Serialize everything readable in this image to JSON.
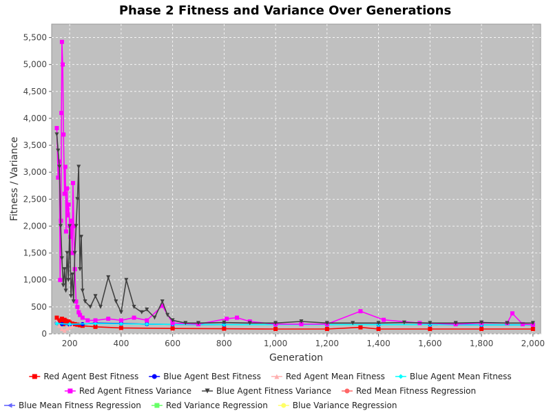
{
  "chart_data": {
    "type": "line",
    "title": "Phase 2 Fitness and Variance Over Generations",
    "xlabel": "Generation",
    "ylabel": "Fitness / Variance",
    "xlim": [
      130,
      2030
    ],
    "ylim": [
      0,
      5750
    ],
    "x_ticks": [
      200,
      400,
      600,
      800,
      1000,
      1200,
      1400,
      1600,
      1800,
      2000
    ],
    "x_tick_labels": [
      "200",
      "400",
      "600",
      "800",
      "1,000",
      "1,200",
      "1,400",
      "1,600",
      "1,800",
      "2,000"
    ],
    "y_ticks": [
      0,
      500,
      1000,
      1500,
      2000,
      2500,
      3000,
      3500,
      4000,
      4500,
      5000,
      5500
    ],
    "y_tick_labels": [
      "0",
      "500",
      "1,000",
      "1,500",
      "2,000",
      "2,500",
      "3,000",
      "3,500",
      "4,000",
      "4,500",
      "5,000",
      "5,500"
    ],
    "grid": true,
    "legend_position": "bottom",
    "plot_background": "#c0c0c0",
    "series": [
      {
        "name": "Red Agent Best Fitness",
        "color": "#ff0000",
        "marker": "square",
        "x": [
          150,
          155,
          160,
          165,
          170,
          175,
          180,
          185,
          190,
          195,
          200,
          210,
          220,
          230,
          240,
          250,
          300,
          400,
          600,
          800,
          1000,
          1200,
          1330,
          1400,
          1600,
          1800,
          2000
        ],
        "y": [
          300,
          200,
          250,
          220,
          280,
          180,
          260,
          240,
          200,
          230,
          210,
          190,
          180,
          170,
          160,
          150,
          130,
          110,
          100,
          95,
          90,
          90,
          120,
          90,
          90,
          90,
          90
        ]
      },
      {
        "name": "Blue Agent Best Fitness",
        "color": "#0000ff",
        "marker": "circle",
        "x": [
          150,
          170,
          200,
          250,
          300,
          400,
          500,
          600,
          800,
          1000,
          1200,
          1400,
          1600,
          1800,
          2000
        ],
        "y": [
          200,
          180,
          170,
          180,
          200,
          190,
          180,
          175,
          170,
          170,
          170,
          170,
          170,
          165,
          165
        ]
      },
      {
        "name": "Red Agent Mean Fitness",
        "color": "#ffafaf",
        "marker": "triangle-up",
        "x": [
          150,
          160,
          170,
          180,
          190,
          200,
          210
        ],
        "y": [
          230,
          150,
          90,
          60,
          100,
          130,
          140
        ]
      },
      {
        "name": "Blue Agent Mean Fitness",
        "color": "#00ffff",
        "marker": "diamond",
        "x": [
          150,
          200,
          300,
          400,
          500,
          600,
          800,
          1000,
          1200,
          1400,
          1600,
          1800,
          2000
        ],
        "y": [
          190,
          180,
          190,
          185,
          180,
          175,
          170,
          170,
          170,
          170,
          170,
          165,
          165
        ]
      },
      {
        "name": "Red Agent Fitness Variance",
        "color": "#ff00ff",
        "marker": "square",
        "x": [
          150,
          155,
          160,
          163,
          166,
          168,
          170,
          173,
          176,
          180,
          183,
          186,
          190,
          193,
          196,
          200,
          203,
          206,
          210,
          213,
          216,
          220,
          225,
          230,
          235,
          240,
          250,
          270,
          300,
          350,
          400,
          450,
          500,
          560,
          600,
          700,
          810,
          850,
          900,
          1000,
          1100,
          1200,
          1330,
          1420,
          1560,
          1700,
          1800,
          1900,
          1920,
          1960,
          2000
        ],
        "y": [
          3820,
          2900,
          3200,
          1000,
          2100,
          4100,
          5420,
          5000,
          3700,
          2600,
          3100,
          1900,
          2700,
          2200,
          2400,
          2000,
          1800,
          2100,
          1500,
          2800,
          2000,
          1200,
          600,
          500,
          400,
          350,
          300,
          250,
          250,
          280,
          250,
          300,
          250,
          520,
          200,
          180,
          280,
          300,
          230,
          180,
          180,
          180,
          420,
          260,
          200,
          180,
          200,
          200,
          380,
          180,
          170
        ]
      },
      {
        "name": "Blue Agent Fitness Variance",
        "color": "#404040",
        "marker": "triangle-down",
        "x": [
          150,
          155,
          160,
          165,
          170,
          175,
          180,
          185,
          190,
          195,
          200,
          205,
          210,
          215,
          220,
          225,
          230,
          235,
          240,
          245,
          250,
          260,
          280,
          300,
          320,
          350,
          380,
          400,
          420,
          450,
          480,
          500,
          530,
          560,
          580,
          600,
          650,
          700,
          800,
          900,
          1000,
          1100,
          1200,
          1300,
          1400,
          1500,
          1600,
          1700,
          1800,
          1900,
          2000
        ],
        "y": [
          3700,
          3400,
          3100,
          2000,
          1400,
          900,
          1200,
          800,
          1500,
          1000,
          2000,
          700,
          1100,
          600,
          1500,
          2000,
          2500,
          3100,
          1200,
          1800,
          800,
          600,
          500,
          700,
          500,
          1050,
          600,
          400,
          1000,
          500,
          400,
          450,
          300,
          600,
          350,
          250,
          200,
          200,
          210,
          200,
          200,
          230,
          200,
          200,
          200,
          210,
          200,
          200,
          210,
          200,
          200
        ]
      },
      {
        "name": "Red Mean Fitness Regression",
        "color": "#ff6666",
        "marker": "circle",
        "x": [],
        "y": []
      },
      {
        "name": "Blue Mean Fitness Regression",
        "color": "#6666ff",
        "marker": "triangle-left",
        "x": [],
        "y": []
      },
      {
        "name": "Red Variance Regression",
        "color": "#66ff66",
        "marker": "square",
        "x": [],
        "y": []
      },
      {
        "name": "Blue Variance Regression",
        "color": "#ffff66",
        "marker": "circle",
        "x": [],
        "y": []
      }
    ]
  }
}
